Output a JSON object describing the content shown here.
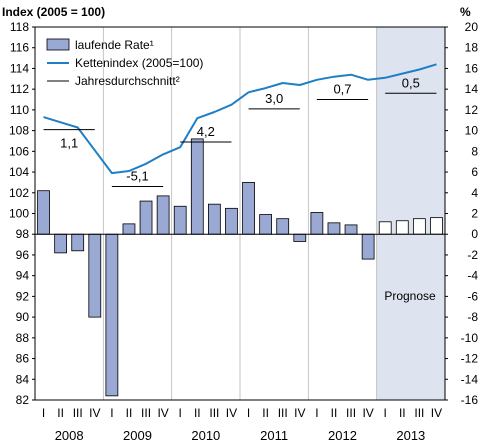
{
  "chart_data": {
    "type": "bar+line",
    "title": "",
    "left_axis_label": "Index (2005 = 100)",
    "right_axis_label": "%",
    "left_ylim": [
      82,
      118
    ],
    "right_ylim": [
      -16,
      20
    ],
    "left_ticks": [
      82,
      84,
      86,
      88,
      90,
      92,
      94,
      96,
      98,
      100,
      102,
      104,
      106,
      108,
      110,
      112,
      114,
      116,
      118
    ],
    "right_ticks": [
      -16,
      -14,
      -12,
      -10,
      -8,
      -6,
      -4,
      -2,
      0,
      2,
      4,
      6,
      8,
      10,
      12,
      14,
      16,
      18,
      20
    ],
    "quarters": [
      "I",
      "II",
      "III",
      "IV",
      "I",
      "II",
      "III",
      "IV",
      "I",
      "II",
      "III",
      "IV",
      "I",
      "II",
      "III",
      "IV",
      "I",
      "II",
      "III",
      "IV",
      "I",
      "II",
      "III",
      "IV"
    ],
    "years": [
      "2008",
      "2009",
      "2010",
      "2011",
      "2012",
      "2013"
    ],
    "forecast_label": "Prognose",
    "forecast_start_index": 20,
    "colors": {
      "bar": "#9aa8d4",
      "line": "#1f7fc4",
      "forecast_bg": "#dde3ef",
      "avg": "#000000"
    },
    "legend": {
      "bar": "laufende Rate¹",
      "line": "Kettenindex (2005=100)",
      "avg": "Jahresdurchschnitt²"
    },
    "series": [
      {
        "name": "laufende Rate¹",
        "kind": "bar",
        "axis": "right",
        "values": [
          4.2,
          -1.8,
          -1.6,
          -8.0,
          -15.6,
          1.0,
          3.2,
          3.7,
          2.7,
          9.2,
          2.9,
          2.5,
          5.0,
          1.9,
          1.5,
          -0.7,
          2.1,
          1.1,
          0.9,
          -2.4,
          1.2,
          1.3,
          1.5,
          1.6
        ]
      },
      {
        "name": "Kettenindex (2005=100)",
        "kind": "line",
        "axis": "left",
        "values": [
          109.3,
          108.8,
          108.3,
          106.1,
          103.9,
          104.1,
          104.8,
          105.7,
          106.4,
          109.2,
          109.8,
          110.5,
          111.7,
          112.1,
          112.6,
          112.4,
          112.9,
          113.2,
          113.4,
          112.9,
          113.1,
          113.5,
          113.9,
          114.4
        ]
      },
      {
        "name": "Jahresdurchschnitt²",
        "kind": "step",
        "axis": "left",
        "values": [
          108.1,
          102.6,
          106.9,
          110.1,
          111.0,
          111.6
        ],
        "labels": [
          "1,1",
          "-5,1",
          "4,2",
          "3,0",
          "0,7",
          "0,5"
        ]
      }
    ]
  }
}
